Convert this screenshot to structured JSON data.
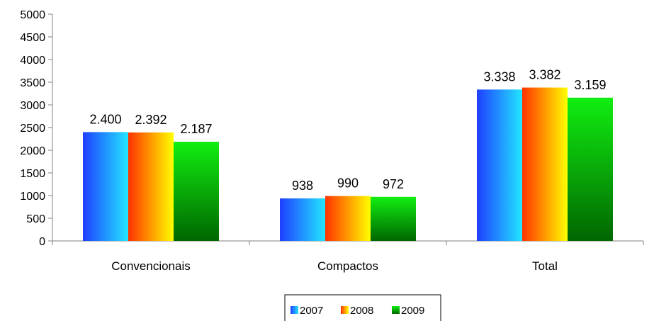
{
  "chart_data": {
    "type": "bar",
    "title": "",
    "xlabel": "",
    "ylabel": "",
    "ylim": [
      0,
      5000
    ],
    "yticks": [
      "0",
      "500",
      "1000",
      "1500",
      "2000",
      "2500",
      "3000",
      "3500",
      "4000",
      "4500",
      "5000"
    ],
    "categories": [
      "Convencionais",
      "Compactos",
      "Total"
    ],
    "series": [
      {
        "name": "2007",
        "values": [
          2400,
          938,
          3338
        ],
        "labels": [
          "2.400",
          "938",
          "3.338"
        ],
        "colors": [
          "#1f3fff",
          "#22e6ff"
        ]
      },
      {
        "name": "2008",
        "values": [
          2392,
          990,
          3382
        ],
        "labels": [
          "2.392",
          "990",
          "3.382"
        ],
        "colors": [
          "#ff3300",
          "#ffff00"
        ]
      },
      {
        "name": "2009",
        "values": [
          2187,
          972,
          3159
        ],
        "labels": [
          "2.187",
          "972",
          "3.159"
        ],
        "colors": [
          "#11ee11",
          "#006600"
        ]
      }
    ],
    "legend": {
      "position": "bottom"
    },
    "grid": false
  }
}
